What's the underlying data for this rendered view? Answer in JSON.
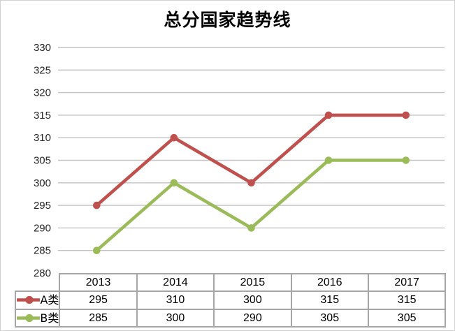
{
  "chart_data": {
    "type": "line",
    "title": "总分国家趋势线",
    "categories": [
      "2013",
      "2014",
      "2015",
      "2016",
      "2017"
    ],
    "series": [
      {
        "name": "A类",
        "color": "#C0504D",
        "values": [
          295,
          310,
          300,
          315,
          315
        ]
      },
      {
        "name": "B类",
        "color": "#9BBB59",
        "values": [
          285,
          300,
          290,
          305,
          305
        ]
      }
    ],
    "xlabel": "",
    "ylabel": "",
    "ylim": [
      280,
      330
    ],
    "ytick_step": 5,
    "grid": true,
    "legend_position": "data-table-left",
    "data_table_shown": true
  },
  "colors": {
    "series_a": "#C0504D",
    "series_b": "#9BBB59",
    "gridline": "#c2c2c2",
    "table_border": "#a6a6a6",
    "axis_text": "#262626",
    "outer_border": "#d2d2d2"
  }
}
